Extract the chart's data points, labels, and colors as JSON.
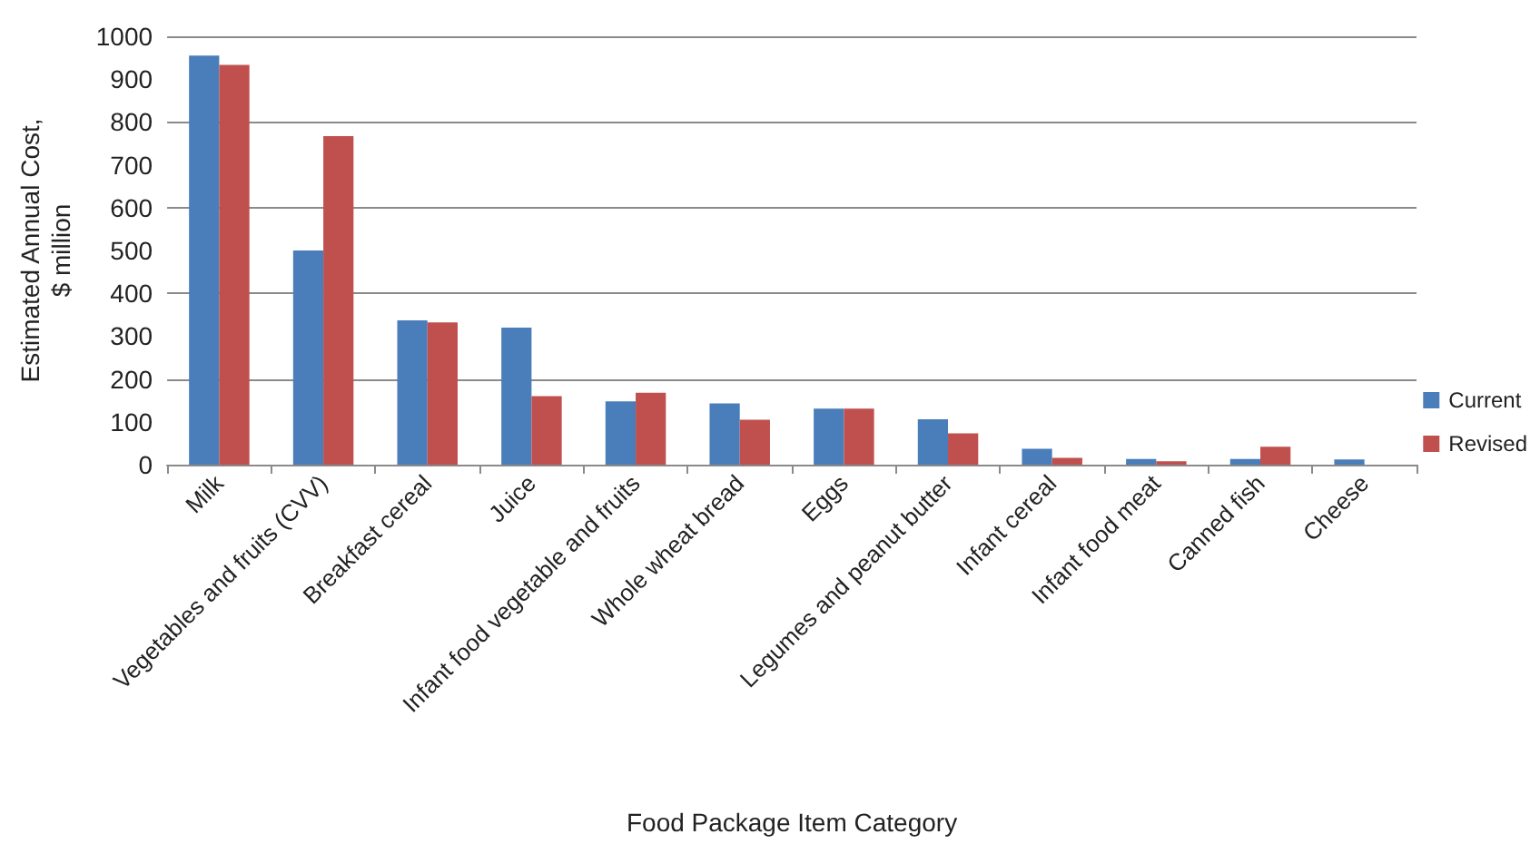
{
  "chart_data": {
    "type": "bar",
    "xlabel": "Food Package Item Category",
    "ylabel": "Estimated Annual Cost,\n$ million",
    "categories": [
      "Milk",
      "Vegetables and fruits (CVV)",
      "Breakfast cereal",
      "Juice",
      "Infant food vegetable and fruits",
      "Whole wheat bread",
      "Eggs",
      "Legumes and peanut butter",
      "Infant cereal",
      "Infant food meat",
      "Canned fish",
      "Cheese"
    ],
    "series": [
      {
        "name": "Current",
        "color": "#4a7ebb",
        "values": [
          955,
          500,
          337,
          320,
          148,
          143,
          131,
          106,
          37,
          13,
          13,
          12
        ]
      },
      {
        "name": "Revised",
        "color": "#c0504d",
        "values": [
          933,
          767,
          332,
          160,
          168,
          105,
          131,
          73,
          16,
          8,
          42,
          null
        ]
      }
    ],
    "ylim": [
      0,
      1000
    ],
    "yticks": [
      0,
      100,
      200,
      300,
      400,
      500,
      600,
      700,
      800,
      900,
      1000
    ],
    "grid": "y",
    "legend": "right"
  }
}
